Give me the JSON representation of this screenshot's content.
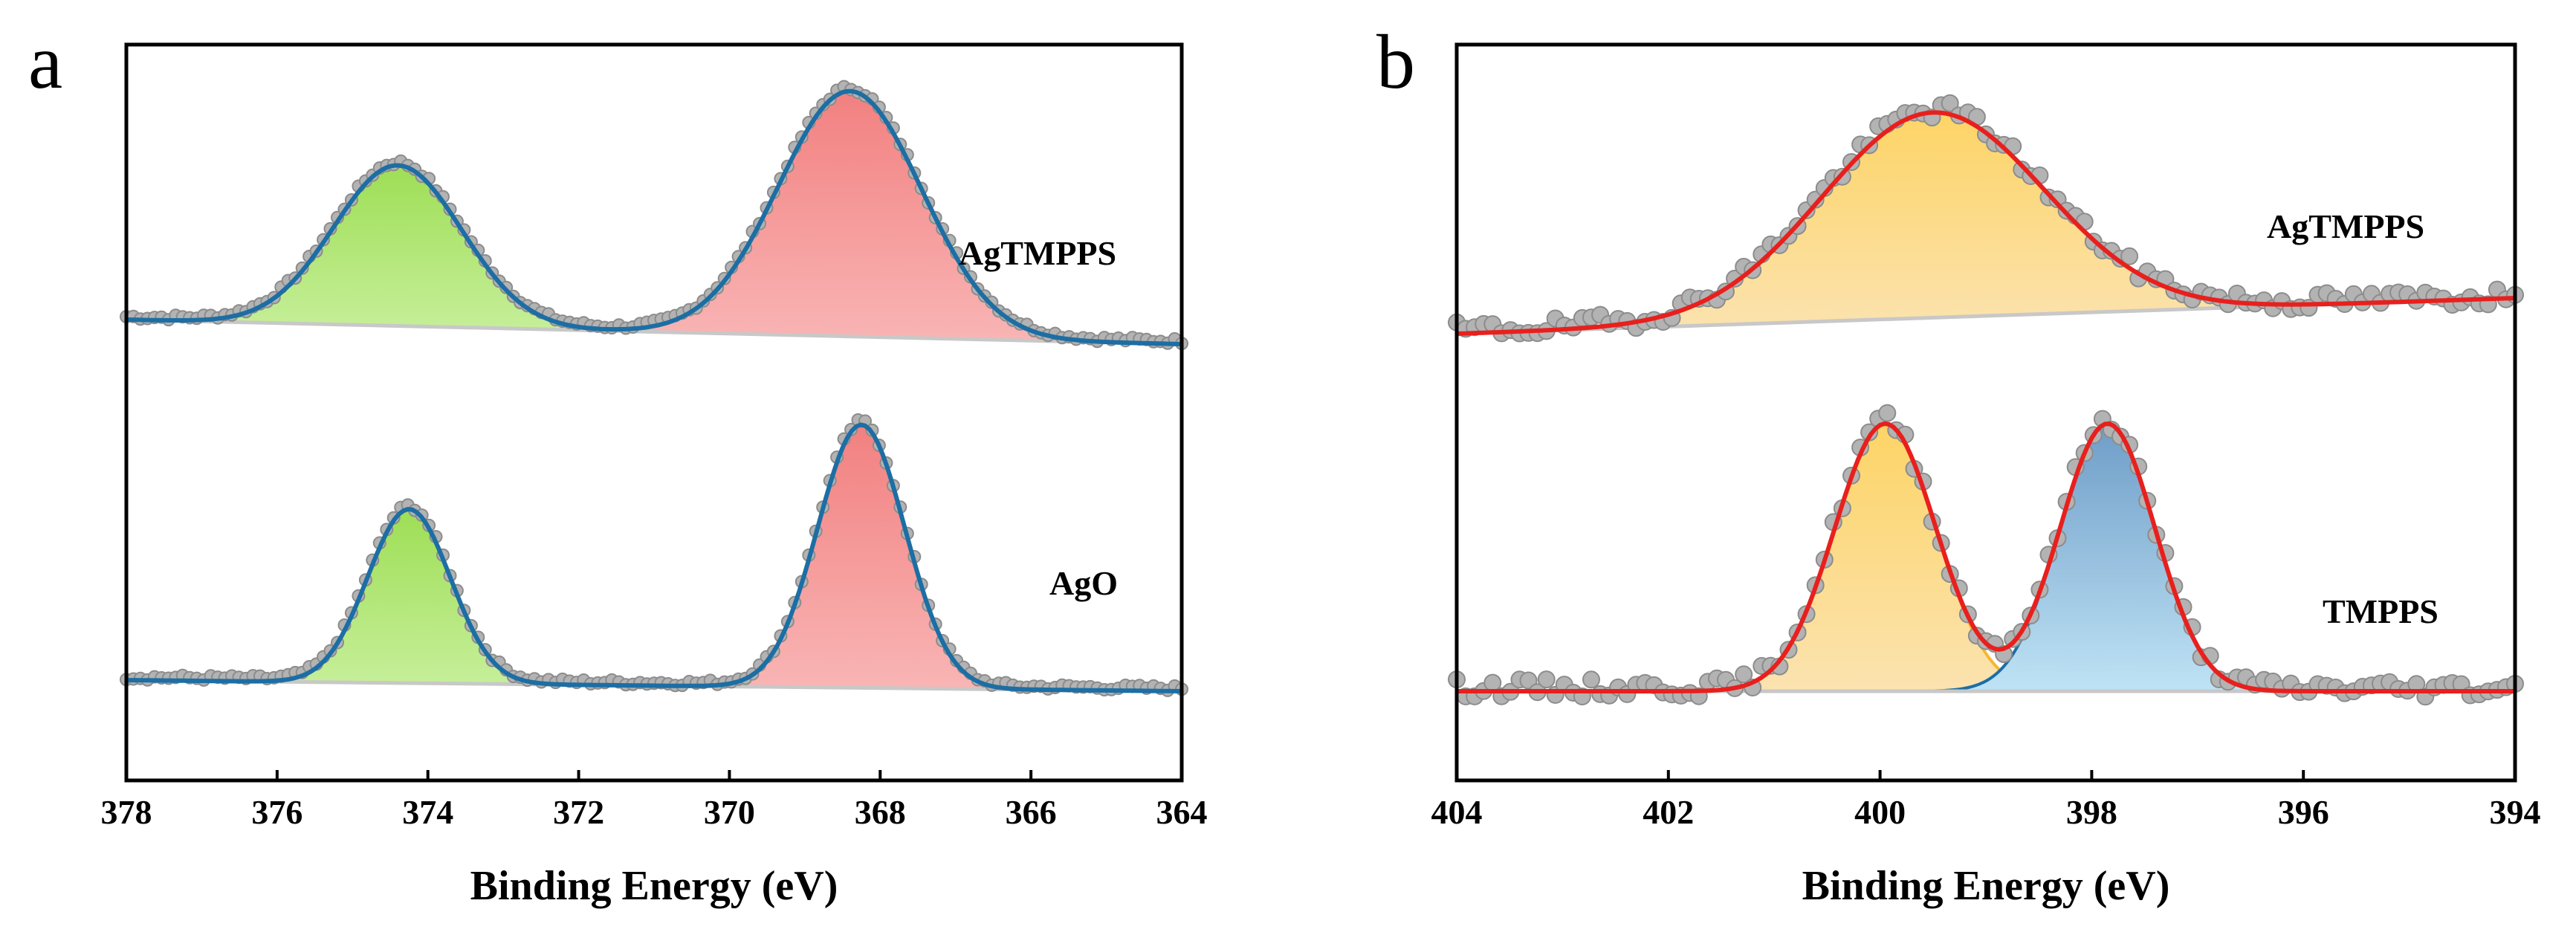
{
  "chart_data": [
    {
      "panel": "a",
      "type": "line",
      "xlabel": "Binding Energy (eV)",
      "xlim": [
        378,
        364
      ],
      "reversed_x": true,
      "x_ticks": [
        378,
        376,
        374,
        372,
        370,
        368,
        366,
        364
      ],
      "y_ticks": false,
      "spectra": [
        {
          "label": "AgTMPPS",
          "baseline": {
            "start": 0.15,
            "end": 0.04
          },
          "peaks": [
            {
              "center": 374.4,
              "sigma": 0.85,
              "height": 0.72,
              "fill": "#c6ef9a",
              "fill_top": "#9ede55"
            },
            {
              "center": 368.4,
              "sigma": 0.95,
              "height": 1.1,
              "fill": "#f9b5b5",
              "fill_top": "#f28080"
            }
          ],
          "fit_color": "#1c6ea4"
        },
        {
          "label": "AgO",
          "baseline": {
            "start": 0.05,
            "end": 0.0
          },
          "peaks": [
            {
              "center": 374.25,
              "sigma": 0.55,
              "height": 0.78,
              "fill": "#c6ef9a",
              "fill_top": "#9ede55"
            },
            {
              "center": 368.25,
              "sigma": 0.58,
              "height": 1.18,
              "fill": "#f9b5b5",
              "fill_top": "#f28080"
            }
          ],
          "fit_color": "#1c6ea4"
        }
      ]
    },
    {
      "panel": "b",
      "type": "line",
      "xlabel": "Binding Energy (eV)",
      "xlim": [
        404,
        394
      ],
      "reversed_x": true,
      "x_ticks": [
        404,
        402,
        400,
        398,
        396,
        394
      ],
      "y_ticks": false,
      "spectra": [
        {
          "label": "AgTMPPS",
          "baseline": {
            "start": 0.02,
            "end": 0.18
          },
          "peaks": [
            {
              "center": 399.5,
              "sigma": 1.05,
              "height": 0.92,
              "fill": "#fbe3b0",
              "fill_top": "#fdd466"
            }
          ],
          "fit_color": "#e8201d"
        },
        {
          "label": "TMPPS",
          "baseline": {
            "start": 0.0,
            "end": 0.0
          },
          "peaks": [
            {
              "center": 399.95,
              "sigma": 0.48,
              "height": 1.2,
              "fill": "#fbe3b0",
              "fill_top": "#fdd466",
              "edge": "#f5b731"
            },
            {
              "center": 397.85,
              "sigma": 0.45,
              "height": 1.2,
              "fill": "#bfe3f5",
              "fill_top": "#6f9dc8",
              "edge": "#1c6ea4"
            }
          ],
          "fit_color": "#e8201d"
        }
      ]
    }
  ],
  "colors": {
    "axis": "#000000",
    "raw_points": "#b3b3b3",
    "raw_point_edge": "#8c8c8c",
    "baseline": "#c8c8c8"
  }
}
